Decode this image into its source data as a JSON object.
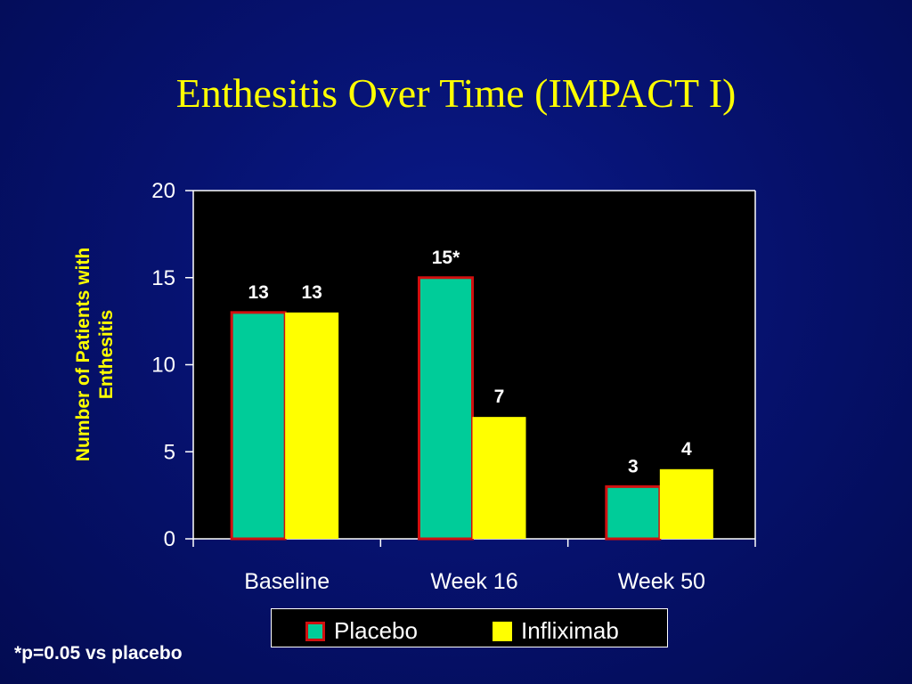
{
  "slide": {
    "title": "Enthesitis Over Time (IMPACT I)",
    "footnote": "*p=0.05 vs placebo"
  },
  "colors": {
    "placebo": "#00cc99",
    "infliximab": "#ffff00",
    "bar_border": "#d01010",
    "plot_bg": "#000000",
    "title": "#ffff00",
    "ylabel": "#ffff00",
    "text": "#ffffff"
  },
  "chart_data": {
    "type": "bar",
    "title": "Enthesitis Over Time (IMPACT I)",
    "xlabel": "",
    "ylabel": "Number of Patients with Enthesitis",
    "ylabel_lines": [
      "Number of Patients with",
      "Enthesitis"
    ],
    "ylim": [
      0,
      20
    ],
    "yticks": [
      0,
      5,
      10,
      15,
      20
    ],
    "grid": false,
    "legend_position": "bottom-center",
    "categories": [
      "Baseline",
      "Week 16",
      "Week 50"
    ],
    "series": [
      {
        "name": "Placebo",
        "values": [
          13,
          15,
          3
        ],
        "labels": [
          "13",
          "15*",
          "3"
        ]
      },
      {
        "name": "Infliximab",
        "values": [
          13,
          7,
          4
        ],
        "labels": [
          "13",
          "7",
          "4"
        ]
      }
    ]
  }
}
